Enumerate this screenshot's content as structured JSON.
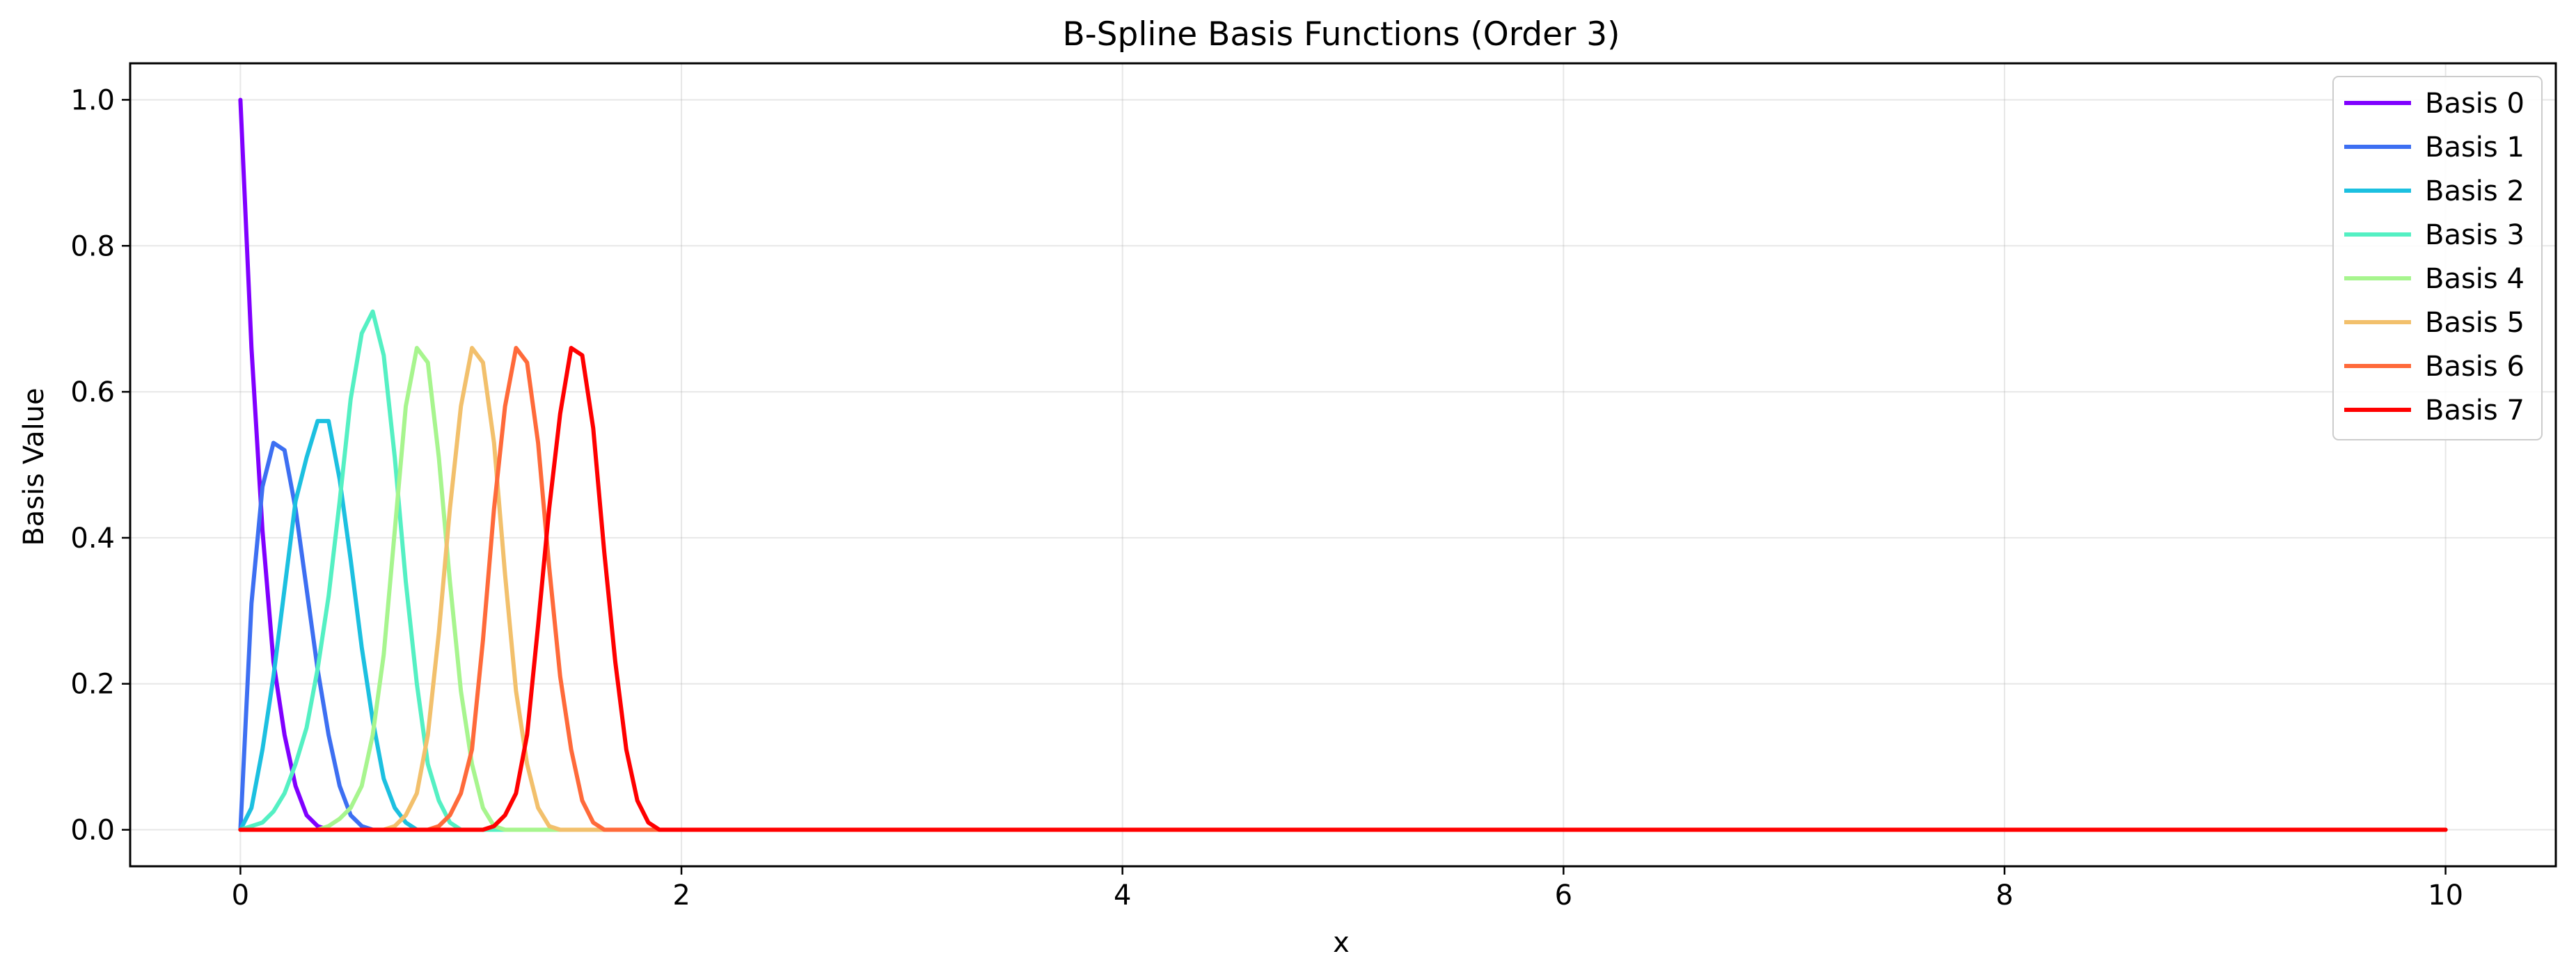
{
  "chart_data": {
    "type": "line",
    "title": "B-Spline Basis Functions (Order 3)",
    "xlabel": "x",
    "ylabel": "Basis Value",
    "xlim": [
      -0.5,
      10.5
    ],
    "ylim": [
      -0.05,
      1.05
    ],
    "xticks": [
      0,
      2,
      4,
      6,
      8,
      10
    ],
    "xtick_labels": [
      "0",
      "2",
      "4",
      "6",
      "8",
      "10"
    ],
    "yticks": [
      0.0,
      0.2,
      0.4,
      0.6,
      0.8,
      1.0
    ],
    "ytick_labels": [
      "0.0",
      "0.2",
      "0.4",
      "0.6",
      "0.8",
      "1.0"
    ],
    "grid": true,
    "legend_position": "top-right",
    "x": [
      0,
      0.05,
      0.1,
      0.15,
      0.2,
      0.25,
      0.3,
      0.35,
      0.4,
      0.45,
      0.5,
      0.55,
      0.6,
      0.65,
      0.7,
      0.75,
      0.8,
      0.85,
      0.9,
      0.95,
      1.0,
      1.05,
      1.1,
      1.15,
      1.2,
      1.25,
      1.3,
      1.35,
      1.4,
      1.45,
      1.5,
      1.55,
      1.6,
      1.65,
      1.7,
      1.75,
      1.8,
      1.85,
      1.9,
      10
    ],
    "series": [
      {
        "name": "Basis 0",
        "color": "#8000ff",
        "values": [
          1.0,
          0.66,
          0.41,
          0.23,
          0.13,
          0.06,
          0.02,
          0.005,
          0,
          0,
          0,
          0,
          0,
          0,
          0,
          0,
          0,
          0,
          0,
          0,
          0,
          0,
          0,
          0,
          0,
          0,
          0,
          0,
          0,
          0,
          0,
          0,
          0,
          0,
          0,
          0,
          0,
          0,
          0,
          0
        ]
      },
      {
        "name": "Basis 1",
        "color": "#3d6ff2",
        "values": [
          0,
          0.31,
          0.47,
          0.53,
          0.52,
          0.44,
          0.33,
          0.22,
          0.13,
          0.06,
          0.02,
          0.005,
          0,
          0,
          0,
          0,
          0,
          0,
          0,
          0,
          0,
          0,
          0,
          0,
          0,
          0,
          0,
          0,
          0,
          0,
          0,
          0,
          0,
          0,
          0,
          0,
          0,
          0,
          0,
          0
        ]
      },
      {
        "name": "Basis 2",
        "color": "#1cc0e0",
        "values": [
          0,
          0.03,
          0.11,
          0.21,
          0.33,
          0.45,
          0.51,
          0.56,
          0.56,
          0.48,
          0.37,
          0.25,
          0.15,
          0.07,
          0.03,
          0.01,
          0,
          0,
          0,
          0,
          0,
          0,
          0,
          0,
          0,
          0,
          0,
          0,
          0,
          0,
          0,
          0,
          0,
          0,
          0,
          0,
          0,
          0,
          0,
          0
        ]
      },
      {
        "name": "Basis 3",
        "color": "#54f0c3",
        "values": [
          0,
          0.005,
          0.01,
          0.025,
          0.05,
          0.09,
          0.14,
          0.22,
          0.32,
          0.45,
          0.59,
          0.68,
          0.71,
          0.65,
          0.51,
          0.34,
          0.2,
          0.09,
          0.04,
          0.01,
          0,
          0,
          0,
          0,
          0,
          0,
          0,
          0,
          0,
          0,
          0,
          0,
          0,
          0,
          0,
          0,
          0,
          0,
          0,
          0
        ]
      },
      {
        "name": "Basis 4",
        "color": "#a7f58e",
        "values": [
          0,
          0,
          0,
          0,
          0,
          0,
          0,
          0,
          0.005,
          0.015,
          0.03,
          0.06,
          0.13,
          0.24,
          0.41,
          0.58,
          0.66,
          0.64,
          0.51,
          0.34,
          0.19,
          0.09,
          0.03,
          0.005,
          0,
          0,
          0,
          0,
          0,
          0,
          0,
          0,
          0,
          0,
          0,
          0,
          0,
          0,
          0,
          0
        ]
      },
      {
        "name": "Basis 5",
        "color": "#f2c06c",
        "values": [
          0,
          0,
          0,
          0,
          0,
          0,
          0,
          0,
          0,
          0,
          0,
          0,
          0,
          0,
          0.005,
          0.02,
          0.05,
          0.13,
          0.27,
          0.44,
          0.58,
          0.66,
          0.64,
          0.53,
          0.35,
          0.19,
          0.09,
          0.03,
          0.005,
          0,
          0,
          0,
          0,
          0,
          0,
          0,
          0,
          0,
          0,
          0
        ]
      },
      {
        "name": "Basis 6",
        "color": "#ff6a3a",
        "values": [
          0,
          0,
          0,
          0,
          0,
          0,
          0,
          0,
          0,
          0,
          0,
          0,
          0,
          0,
          0,
          0,
          0,
          0,
          0.005,
          0.02,
          0.05,
          0.11,
          0.26,
          0.44,
          0.58,
          0.66,
          0.64,
          0.53,
          0.36,
          0.21,
          0.11,
          0.04,
          0.01,
          0,
          0,
          0,
          0,
          0,
          0,
          0
        ]
      },
      {
        "name": "Basis 7",
        "color": "#ff0000",
        "values": [
          0,
          0,
          0,
          0,
          0,
          0,
          0,
          0,
          0,
          0,
          0,
          0,
          0,
          0,
          0,
          0,
          0,
          0,
          0,
          0,
          0,
          0,
          0,
          0.005,
          0.02,
          0.05,
          0.13,
          0.28,
          0.44,
          0.57,
          0.66,
          0.65,
          0.55,
          0.38,
          0.23,
          0.11,
          0.04,
          0.01,
          0,
          0
        ]
      }
    ]
  }
}
